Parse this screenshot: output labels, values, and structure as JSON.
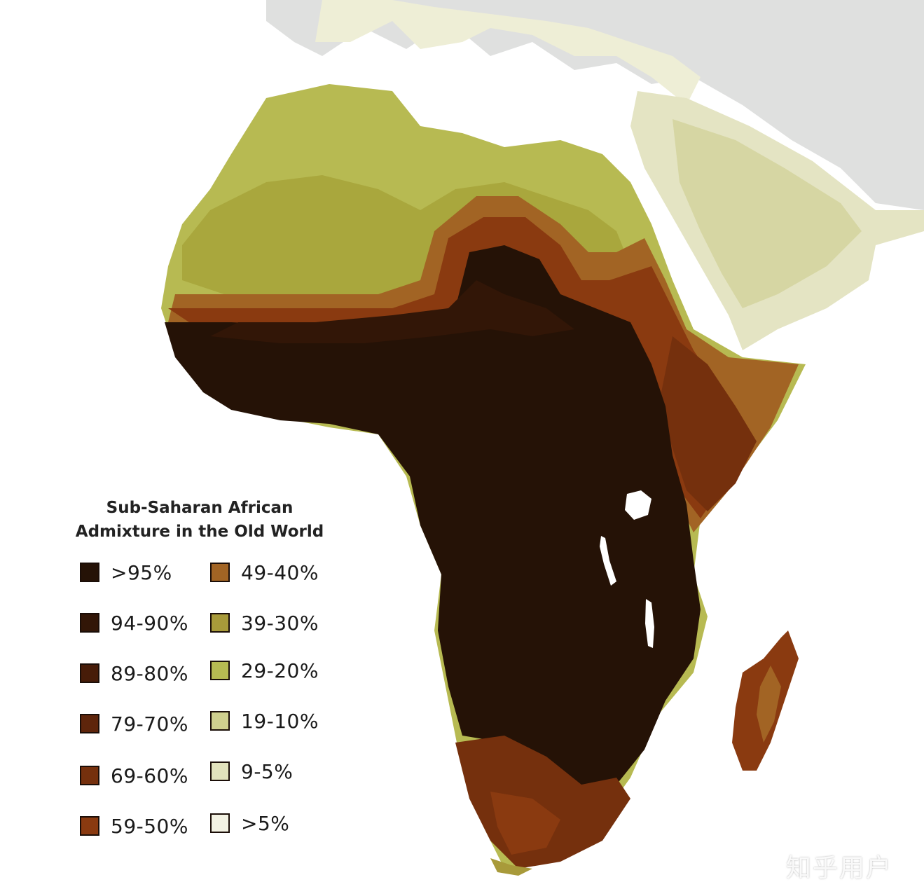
{
  "map": {
    "colors": {
      "background_land": "#dfe0df",
      "sea": "#ffffff",
      "lake": "#ffffff"
    }
  },
  "legend": {
    "title_line1": "Sub-Saharan African",
    "title_line2": "Admixture in the Old World",
    "items": [
      {
        "label": ">95%",
        "color": "#251206"
      },
      {
        "label": "94-90%",
        "color": "#321607"
      },
      {
        "label": "89-80%",
        "color": "#471c08"
      },
      {
        "label": "79-70%",
        "color": "#5e250b"
      },
      {
        "label": "69-60%",
        "color": "#75300d"
      },
      {
        "label": "59-50%",
        "color": "#8a3a10"
      },
      {
        "label": "49-40%",
        "color": "#a26424"
      },
      {
        "label": "39-30%",
        "color": "#a89a3a"
      },
      {
        "label": "29-20%",
        "color": "#b7ba52"
      },
      {
        "label": "19-10%",
        "color": "#d0d08e"
      },
      {
        "label": "9-5%",
        "color": "#e2e2bc"
      },
      {
        "label": ">5%",
        "color": "#f3f2e3"
      }
    ]
  },
  "watermark": "知乎用户"
}
